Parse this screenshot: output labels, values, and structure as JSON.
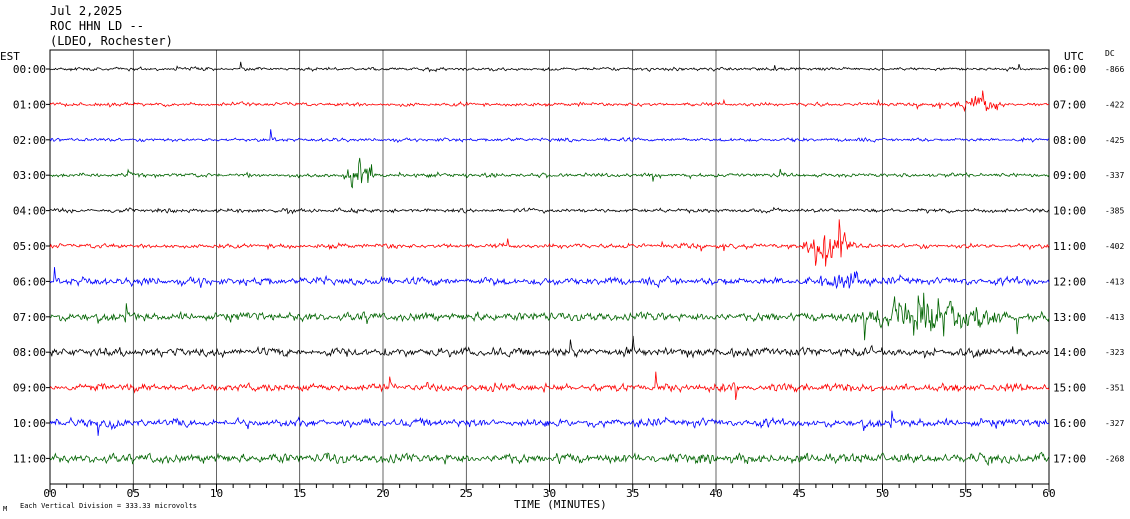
{
  "header": {
    "date": "Jul 2,2025",
    "station": "ROC HHN LD --",
    "network": "(LDEO, Rochester)"
  },
  "labels": {
    "left_tz": "EST",
    "right_tz": "UTC",
    "dc": "DC",
    "xlabel": "TIME (MINUTES)",
    "scale_note": "Each Vertical Division =  333.33 microvolts",
    "corner_mark": "M"
  },
  "chart_data": {
    "type": "line",
    "title": "",
    "xlabel": "TIME (MINUTES)",
    "xlim": [
      0,
      60
    ],
    "x_ticks": [
      "00",
      "05",
      "10",
      "15",
      "20",
      "25",
      "30",
      "35",
      "40",
      "45",
      "50",
      "55",
      "60"
    ],
    "grid": true,
    "rows": [
      {
        "est": "00:00",
        "utc": "06:00",
        "dc": "-866",
        "color": "#000000",
        "amp": 0.9
      },
      {
        "est": "01:00",
        "utc": "07:00",
        "dc": "-422",
        "color": "#ff0000",
        "amp": 1.0
      },
      {
        "est": "02:00",
        "utc": "08:00",
        "dc": "-425",
        "color": "#0000ff",
        "amp": 1.0
      },
      {
        "est": "03:00",
        "utc": "09:00",
        "dc": "-337",
        "color": "#006400",
        "amp": 1.1
      },
      {
        "est": "04:00",
        "utc": "10:00",
        "dc": "-385",
        "color": "#000000",
        "amp": 1.1
      },
      {
        "est": "05:00",
        "utc": "11:00",
        "dc": "-402",
        "color": "#ff0000",
        "amp": 1.3
      },
      {
        "est": "06:00",
        "utc": "12:00",
        "dc": "-413",
        "color": "#0000ff",
        "amp": 2.2
      },
      {
        "est": "07:00",
        "utc": "13:00",
        "dc": "-413",
        "color": "#006400",
        "amp": 2.4
      },
      {
        "est": "08:00",
        "utc": "14:00",
        "dc": "-323",
        "color": "#000000",
        "amp": 2.4
      },
      {
        "est": "09:00",
        "utc": "15:00",
        "dc": "-351",
        "color": "#ff0000",
        "amp": 2.2
      },
      {
        "est": "10:00",
        "utc": "16:00",
        "dc": "-327",
        "color": "#0000ff",
        "amp": 2.3
      },
      {
        "est": "11:00",
        "utc": "17:00",
        "dc": "-268",
        "color": "#006400",
        "amp": 2.6
      }
    ],
    "events": [
      {
        "row": 3,
        "start_min": 17.5,
        "end_min": 19.5,
        "amp": 14
      },
      {
        "row": 5,
        "start_min": 45.0,
        "end_min": 48.5,
        "amp": 22
      },
      {
        "row": 6,
        "start_min": 45.5,
        "end_min": 49.5,
        "amp": 9
      },
      {
        "row": 7,
        "start_min": 47.0,
        "end_min": 58.0,
        "amp": 11
      },
      {
        "row": 1,
        "start_min": 54.0,
        "end_min": 57.5,
        "amp": 6
      }
    ]
  }
}
